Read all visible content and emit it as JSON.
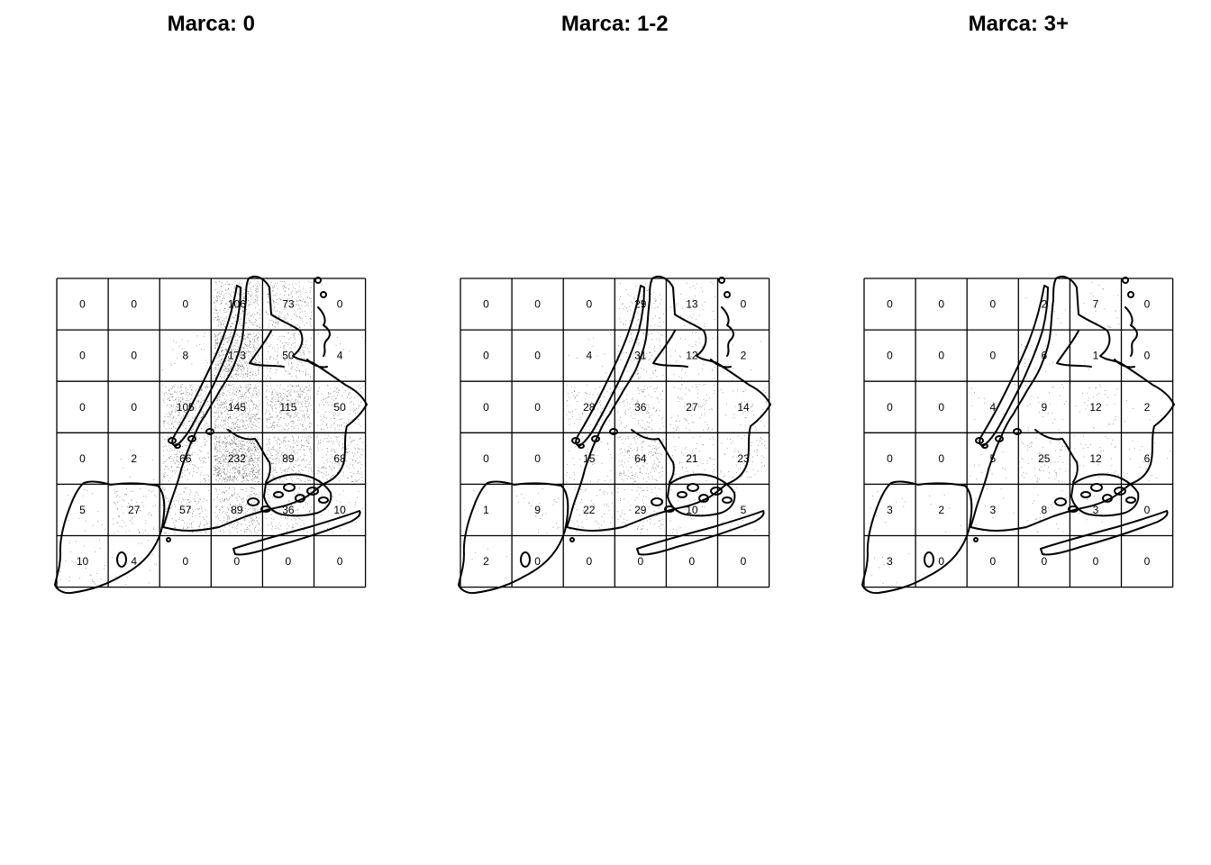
{
  "figure": {
    "description_type": "quadrat-count map panels",
    "panels": [
      {
        "title": "Marca: 0",
        "counts": [
          [
            0,
            0,
            0,
            106,
            73,
            0
          ],
          [
            0,
            0,
            8,
            173,
            50,
            4
          ],
          [
            0,
            0,
            105,
            145,
            115,
            50
          ],
          [
            0,
            2,
            66,
            232,
            89,
            68
          ],
          [
            5,
            27,
            57,
            89,
            36,
            10
          ],
          [
            10,
            4,
            0,
            0,
            0,
            0
          ]
        ]
      },
      {
        "title": "Marca: 1-2",
        "counts": [
          [
            0,
            0,
            0,
            29,
            13,
            0
          ],
          [
            0,
            0,
            4,
            31,
            12,
            2
          ],
          [
            0,
            0,
            28,
            36,
            27,
            14
          ],
          [
            0,
            0,
            15,
            64,
            21,
            23
          ],
          [
            1,
            9,
            22,
            29,
            10,
            5
          ],
          [
            2,
            0,
            0,
            0,
            0,
            0
          ]
        ]
      },
      {
        "title": "Marca: 3+",
        "counts": [
          [
            0,
            0,
            0,
            2,
            7,
            0
          ],
          [
            0,
            0,
            0,
            6,
            1,
            0
          ],
          [
            0,
            0,
            4,
            9,
            12,
            2
          ],
          [
            0,
            0,
            5,
            25,
            12,
            6
          ],
          [
            3,
            2,
            3,
            8,
            3,
            0
          ],
          [
            3,
            0,
            0,
            0,
            0,
            0
          ]
        ]
      }
    ]
  },
  "chart_data": [
    {
      "type": "heatmap",
      "title": "Marca: 0",
      "rows": 6,
      "cols": 6,
      "values": [
        [
          0,
          0,
          0,
          106,
          73,
          0
        ],
        [
          0,
          0,
          8,
          173,
          50,
          4
        ],
        [
          0,
          0,
          105,
          145,
          115,
          50
        ],
        [
          0,
          2,
          66,
          232,
          89,
          68
        ],
        [
          5,
          27,
          57,
          89,
          36,
          10
        ],
        [
          10,
          4,
          0,
          0,
          0,
          0
        ]
      ]
    },
    {
      "type": "heatmap",
      "title": "Marca: 1-2",
      "rows": 6,
      "cols": 6,
      "values": [
        [
          0,
          0,
          0,
          29,
          13,
          0
        ],
        [
          0,
          0,
          4,
          31,
          12,
          2
        ],
        [
          0,
          0,
          28,
          36,
          27,
          14
        ],
        [
          0,
          0,
          15,
          64,
          21,
          23
        ],
        [
          1,
          9,
          22,
          29,
          10,
          5
        ],
        [
          2,
          0,
          0,
          0,
          0,
          0
        ]
      ]
    },
    {
      "type": "heatmap",
      "title": "Marca: 3+",
      "rows": 6,
      "cols": 6,
      "values": [
        [
          0,
          0,
          0,
          2,
          7,
          0
        ],
        [
          0,
          0,
          0,
          6,
          1,
          0
        ],
        [
          0,
          0,
          4,
          9,
          12,
          2
        ],
        [
          0,
          0,
          5,
          25,
          12,
          6
        ],
        [
          3,
          2,
          3,
          8,
          3,
          0
        ],
        [
          3,
          0,
          0,
          0,
          0,
          0
        ]
      ]
    }
  ]
}
